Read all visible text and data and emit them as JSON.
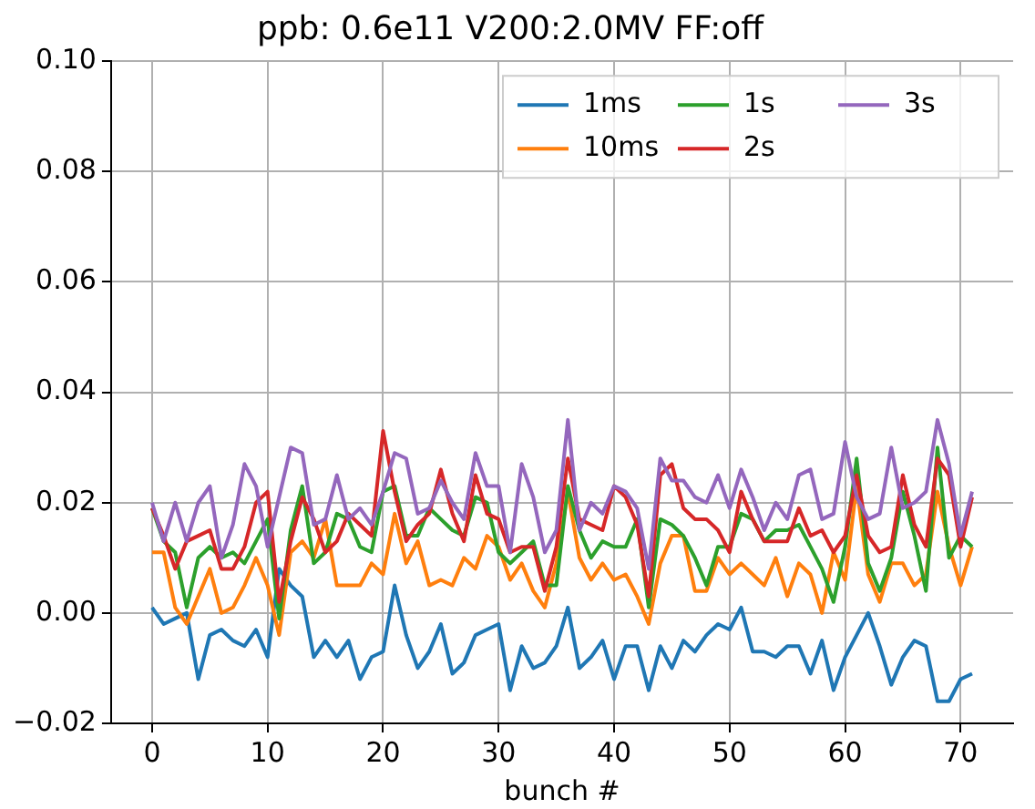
{
  "chart_data": {
    "type": "line",
    "title": "ppb: 0.6e11 V200:2.0MV FF:off",
    "xlabel": "bunch #",
    "x": [
      0,
      1,
      2,
      3,
      4,
      5,
      6,
      7,
      8,
      9,
      10,
      11,
      12,
      13,
      14,
      15,
      16,
      17,
      18,
      19,
      20,
      21,
      22,
      23,
      24,
      25,
      26,
      27,
      28,
      29,
      30,
      31,
      32,
      33,
      34,
      35,
      36,
      37,
      38,
      39,
      40,
      41,
      42,
      43,
      44,
      45,
      46,
      47,
      48,
      49,
      50,
      51,
      52,
      53,
      54,
      55,
      56,
      57,
      58,
      59,
      60,
      61,
      62,
      63,
      64,
      65,
      66,
      67,
      68,
      69,
      70,
      71
    ],
    "series": [
      {
        "name": "1ms",
        "color": "#1f77b4",
        "values": [
          0.001,
          -0.002,
          -0.001,
          0.0,
          -0.012,
          -0.004,
          -0.003,
          -0.005,
          -0.006,
          -0.003,
          -0.008,
          0.008,
          0.005,
          0.003,
          -0.008,
          -0.005,
          -0.008,
          -0.005,
          -0.012,
          -0.008,
          -0.007,
          0.005,
          -0.004,
          -0.01,
          -0.007,
          -0.002,
          -0.011,
          -0.009,
          -0.004,
          -0.003,
          -0.002,
          -0.014,
          -0.006,
          -0.01,
          -0.009,
          -0.006,
          0.001,
          -0.01,
          -0.008,
          -0.005,
          -0.012,
          -0.006,
          -0.006,
          -0.014,
          -0.006,
          -0.01,
          -0.005,
          -0.007,
          -0.004,
          -0.002,
          -0.003,
          0.001,
          -0.007,
          -0.007,
          -0.008,
          -0.006,
          -0.006,
          -0.011,
          -0.005,
          -0.014,
          -0.008,
          -0.004,
          0.0,
          -0.006,
          -0.013,
          -0.008,
          -0.005,
          -0.006,
          -0.016,
          -0.016,
          -0.012,
          -0.011
        ]
      },
      {
        "name": "10ms",
        "color": "#ff7f0e",
        "values": [
          0.011,
          0.011,
          0.001,
          -0.002,
          0.003,
          0.008,
          0.0,
          0.001,
          0.005,
          0.01,
          0.005,
          -0.004,
          0.011,
          0.013,
          0.01,
          0.017,
          0.005,
          0.005,
          0.005,
          0.009,
          0.007,
          0.018,
          0.009,
          0.013,
          0.005,
          0.006,
          0.005,
          0.01,
          0.008,
          0.014,
          0.012,
          0.006,
          0.009,
          0.004,
          0.001,
          0.009,
          0.022,
          0.01,
          0.006,
          0.009,
          0.006,
          0.007,
          0.003,
          -0.002,
          0.009,
          0.014,
          0.014,
          0.004,
          0.004,
          0.01,
          0.007,
          0.009,
          0.007,
          0.005,
          0.01,
          0.003,
          0.009,
          0.007,
          0.0,
          0.011,
          0.006,
          0.023,
          0.007,
          0.002,
          0.009,
          0.009,
          0.005,
          0.007,
          0.022,
          0.012,
          0.005,
          0.012
        ]
      },
      {
        "name": "1s",
        "color": "#2ca02c",
        "values": [
          0.019,
          0.013,
          0.011,
          0.001,
          0.01,
          0.012,
          0.01,
          0.011,
          0.009,
          0.013,
          0.017,
          -0.001,
          0.015,
          0.023,
          0.009,
          0.011,
          0.018,
          0.017,
          0.012,
          0.011,
          0.022,
          0.023,
          0.014,
          0.014,
          0.019,
          0.017,
          0.015,
          0.014,
          0.021,
          0.02,
          0.011,
          0.009,
          0.011,
          0.013,
          0.005,
          0.005,
          0.023,
          0.015,
          0.01,
          0.013,
          0.012,
          0.012,
          0.017,
          0.001,
          0.017,
          0.016,
          0.014,
          0.01,
          0.005,
          0.012,
          0.012,
          0.018,
          0.017,
          0.013,
          0.015,
          0.015,
          0.016,
          0.012,
          0.008,
          0.002,
          0.012,
          0.028,
          0.009,
          0.004,
          0.01,
          0.022,
          0.014,
          0.004,
          0.03,
          0.01,
          0.014,
          0.012
        ]
      },
      {
        "name": "2s",
        "color": "#d62728",
        "values": [
          0.019,
          0.014,
          0.008,
          0.013,
          0.014,
          0.015,
          0.008,
          0.008,
          0.012,
          0.02,
          0.022,
          0.002,
          0.013,
          0.021,
          0.017,
          0.011,
          0.013,
          0.018,
          0.016,
          0.014,
          0.033,
          0.022,
          0.013,
          0.016,
          0.018,
          0.026,
          0.018,
          0.013,
          0.025,
          0.018,
          0.017,
          0.011,
          0.012,
          0.012,
          0.004,
          0.012,
          0.028,
          0.017,
          0.016,
          0.015,
          0.023,
          0.021,
          0.016,
          0.003,
          0.025,
          0.027,
          0.019,
          0.017,
          0.017,
          0.015,
          0.011,
          0.022,
          0.017,
          0.013,
          0.013,
          0.013,
          0.019,
          0.014,
          0.015,
          0.011,
          0.014,
          0.025,
          0.014,
          0.011,
          0.012,
          0.025,
          0.016,
          0.012,
          0.028,
          0.025,
          0.012,
          0.021
        ]
      },
      {
        "name": "3s",
        "color": "#9467bd",
        "values": [
          0.02,
          0.013,
          0.02,
          0.013,
          0.02,
          0.023,
          0.01,
          0.016,
          0.027,
          0.023,
          0.012,
          0.021,
          0.03,
          0.029,
          0.016,
          0.017,
          0.025,
          0.017,
          0.019,
          0.016,
          0.022,
          0.029,
          0.028,
          0.018,
          0.019,
          0.024,
          0.02,
          0.017,
          0.029,
          0.023,
          0.023,
          0.011,
          0.027,
          0.021,
          0.011,
          0.015,
          0.035,
          0.015,
          0.02,
          0.018,
          0.023,
          0.022,
          0.019,
          0.008,
          0.028,
          0.024,
          0.024,
          0.021,
          0.02,
          0.025,
          0.019,
          0.026,
          0.021,
          0.015,
          0.02,
          0.017,
          0.025,
          0.026,
          0.017,
          0.018,
          0.031,
          0.021,
          0.017,
          0.018,
          0.03,
          0.019,
          0.02,
          0.022,
          0.035,
          0.027,
          0.014,
          0.022
        ]
      }
    ],
    "xlim": [
      -3.55,
      74.55
    ],
    "xticks": [
      0,
      10,
      20,
      30,
      40,
      50,
      60,
      70
    ],
    "ylim": [
      -0.02,
      0.1
    ],
    "yticks": [
      {
        "value": -0.02,
        "label": "−0.02"
      },
      {
        "value": 0,
        "label": "0.00"
      },
      {
        "value": 0.02,
        "label": "0.02"
      },
      {
        "value": 0.04,
        "label": "0.04"
      },
      {
        "value": 0.06,
        "label": "0.06"
      },
      {
        "value": 0.08,
        "label": "0.08"
      },
      {
        "value": 0.1,
        "label": "0.10"
      }
    ],
    "grid": true,
    "legend": "top right",
    "marker": "none",
    "line_style": "solid"
  }
}
